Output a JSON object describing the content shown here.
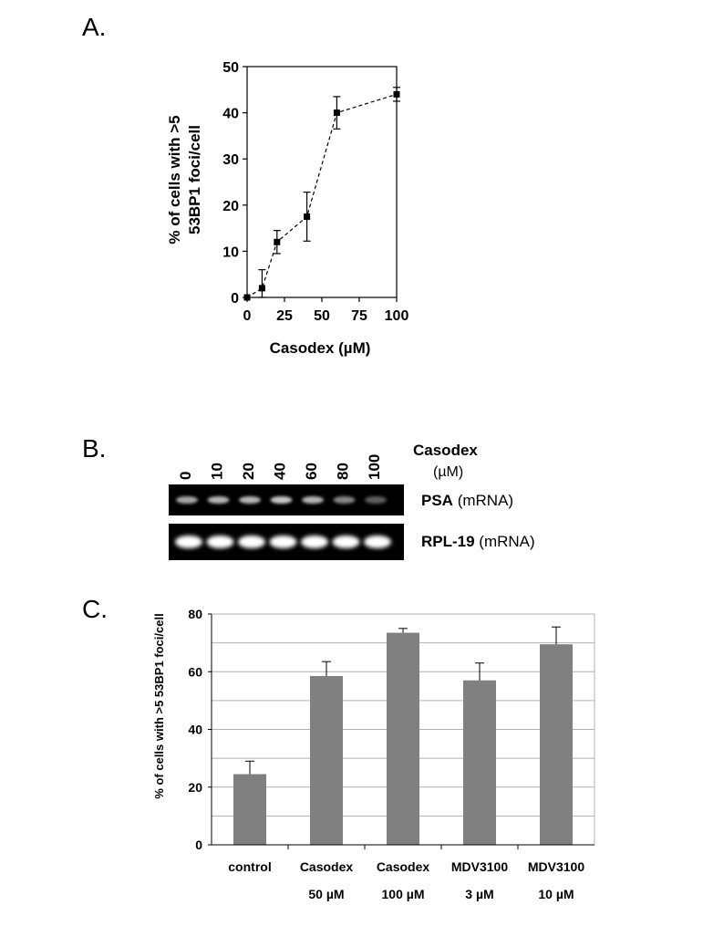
{
  "panel_labels": {
    "a": "A.",
    "b": "B.",
    "c": "C."
  },
  "chart_data": [
    {
      "panel": "A",
      "type": "scatter",
      "xlabel": "Casodex (µM)",
      "ylabel_lines": [
        "% of cells with >5",
        "53BP1 foci/cell"
      ],
      "xlim": [
        0,
        100
      ],
      "ylim": [
        0,
        50
      ],
      "xticks": [
        0,
        25,
        50,
        75,
        100
      ],
      "yticks": [
        0,
        10,
        20,
        30,
        40,
        50
      ],
      "x": [
        0,
        10,
        20,
        40,
        60,
        100
      ],
      "y": [
        0,
        2,
        12,
        17.5,
        40,
        44
      ],
      "err": [
        0,
        4,
        2.5,
        5.3,
        3.5,
        1.5
      ],
      "trend_line": "dashed",
      "grid": false
    },
    {
      "panel": "C",
      "type": "bar",
      "ylabel": "% of cells with >5 53BP1 foci/cell",
      "ylim": [
        0,
        80
      ],
      "yticks": [
        0,
        20,
        40,
        60,
        80
      ],
      "categories": [
        {
          "line1": "control",
          "line2": ""
        },
        {
          "line1": "Casodex",
          "line2": "50 µM"
        },
        {
          "line1": "Casodex",
          "line2": "100 µM"
        },
        {
          "line1": "MDV3100",
          "line2": "3 µM"
        },
        {
          "line1": "MDV3100",
          "line2": "10 µM"
        }
      ],
      "values": [
        24.5,
        58.5,
        73.5,
        57,
        69.5
      ],
      "err": [
        4.5,
        5,
        1.5,
        6,
        6
      ],
      "bar_color": "#808080",
      "grid": true
    }
  ],
  "gel": {
    "title": "Casodex",
    "unit": "(µM)",
    "lanes": [
      "0",
      "10",
      "20",
      "40",
      "60",
      "80",
      "100"
    ],
    "rows": [
      {
        "name": "PSA",
        "suffix": " (mRNA)",
        "band_intensity": [
          0.55,
          0.62,
          0.62,
          0.72,
          0.62,
          0.38,
          0.18
        ]
      },
      {
        "name": "RPL-19",
        "suffix": " (mRNA)",
        "band_intensity": [
          1,
          1,
          1,
          1,
          1,
          1,
          1
        ]
      }
    ]
  }
}
